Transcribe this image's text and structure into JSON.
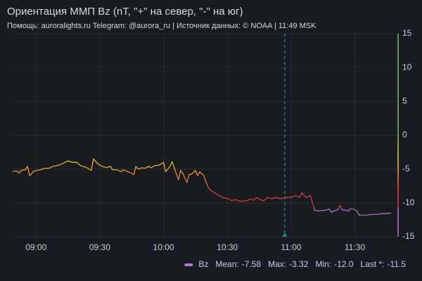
{
  "chart_data": {
    "type": "line",
    "title": "Ориентация ММП Bz (nT, \"+\" на север, \"-\" на юг)",
    "subtitle": "Помощь: auroralights.ru Telegram: @aurora_ru | Источник данных:  © NOAA | 11:49 MSK",
    "x": [
      "08:49",
      "08:51",
      "08:52",
      "08:53",
      "08:55",
      "08:56",
      "08:57",
      "08:59",
      "09:02",
      "09:04",
      "09:06",
      "09:08",
      "09:11",
      "09:13",
      "09:15",
      "09:17",
      "09:19",
      "09:21",
      "09:24",
      "09:26",
      "09:27",
      "09:29",
      "09:31",
      "09:33",
      "09:35",
      "09:36",
      "09:38",
      "09:40",
      "09:41",
      "09:44",
      "09:46",
      "09:47",
      "09:48",
      "09:50",
      "09:51",
      "09:53",
      "09:54",
      "09:56",
      "09:58",
      "09:59",
      "10:00",
      "10:01",
      "10:03",
      "10:04",
      "10:05",
      "10:07",
      "10:08",
      "10:09",
      "10:11",
      "10:12",
      "10:13",
      "10:15",
      "10:16",
      "10:17",
      "10:19",
      "10:20",
      "10:21",
      "10:22",
      "10:24",
      "10:26",
      "10:28",
      "10:29",
      "10:31",
      "10:32",
      "10:34",
      "10:36",
      "10:37",
      "10:39",
      "10:41",
      "10:42",
      "10:44",
      "10:46",
      "10:47",
      "10:49",
      "10:51",
      "10:53",
      "10:55",
      "10:57",
      "10:59",
      "11:01",
      "11:02",
      "11:04",
      "11:05",
      "11:07",
      "11:09",
      "11:10",
      "11:11",
      "11:13",
      "11:15",
      "11:16",
      "11:18",
      "11:19",
      "11:20",
      "11:22",
      "11:23",
      "11:24",
      "11:26",
      "11:27",
      "11:28",
      "11:30",
      "11:31",
      "11:32",
      "11:34",
      "11:36",
      "11:38",
      "11:40",
      "11:42",
      "11:44",
      "11:47"
    ],
    "series": [
      {
        "name": "Bz",
        "color": "#b877d9",
        "values": [
          -5.3,
          -5.3,
          -5.6,
          -5.2,
          -5.1,
          -4.6,
          -6.0,
          -5.3,
          -5.1,
          -4.9,
          -4.9,
          -4.6,
          -4.4,
          -4.1,
          -3.8,
          -4.0,
          -4.0,
          -4.5,
          -4.8,
          -5.2,
          -3.5,
          -4.2,
          -4.6,
          -4.8,
          -4.6,
          -5.1,
          -5.1,
          -5.4,
          -5.1,
          -5.5,
          -5.8,
          -4.6,
          -5.0,
          -4.8,
          -4.9,
          -4.6,
          -4.8,
          -4.5,
          -4.4,
          -4.2,
          -4.0,
          -5.4,
          -4.6,
          -3.9,
          -4.8,
          -6.6,
          -5.2,
          -5.6,
          -7.0,
          -5.8,
          -5.8,
          -5.2,
          -6.0,
          -5.4,
          -6.0,
          -7.0,
          -7.7,
          -8.1,
          -8.5,
          -8.9,
          -9.2,
          -9.3,
          -9.4,
          -9.7,
          -9.5,
          -9.8,
          -9.7,
          -9.7,
          -9.4,
          -9.6,
          -9.2,
          -9.6,
          -9.7,
          -9.2,
          -9.4,
          -9.2,
          -9.4,
          -9.2,
          -9.2,
          -9.1,
          -8.9,
          -9.2,
          -8.5,
          -9.2,
          -8.9,
          -9.9,
          -11.1,
          -11.2,
          -11.1,
          -11.1,
          -10.9,
          -11.4,
          -11.2,
          -11.0,
          -10.3,
          -11.0,
          -11.1,
          -11.2,
          -10.8,
          -11.0,
          -11.2,
          -11.8,
          -11.8,
          -11.8,
          -11.7,
          -11.7,
          -11.6,
          -11.6,
          -11.5
        ]
      }
    ],
    "color_scale": [
      {
        "value": 0,
        "color": "#73bf69"
      },
      {
        "value": -3,
        "color": "#fade2a"
      },
      {
        "value": -5.5,
        "color": "#ff9830"
      },
      {
        "value": -8,
        "color": "#f2495c"
      },
      {
        "value": -10.5,
        "color": "#e02f44"
      },
      {
        "value": -11,
        "color": "#b877d9"
      }
    ],
    "xlim": [
      "08:49",
      "11:50"
    ],
    "xticks": [
      "09:00",
      "09:30",
      "10:00",
      "10:30",
      "11:00",
      "11:30"
    ],
    "ylim": [
      -15,
      15
    ],
    "yticks": [
      15,
      10,
      5,
      0,
      -5,
      -10,
      -15
    ],
    "y_axis_side": "right",
    "grid": true,
    "annotation_x": "10:57",
    "annotation_color": "#1f7f7a",
    "legend_stats": [
      {
        "label": "Mean:",
        "value": -7.58
      },
      {
        "label": "Max:",
        "value": -3.32
      },
      {
        "label": "Min:",
        "value": -12,
        "value_label": "-12.0"
      },
      {
        "label": "Last *:",
        "value": -11.5
      }
    ]
  }
}
